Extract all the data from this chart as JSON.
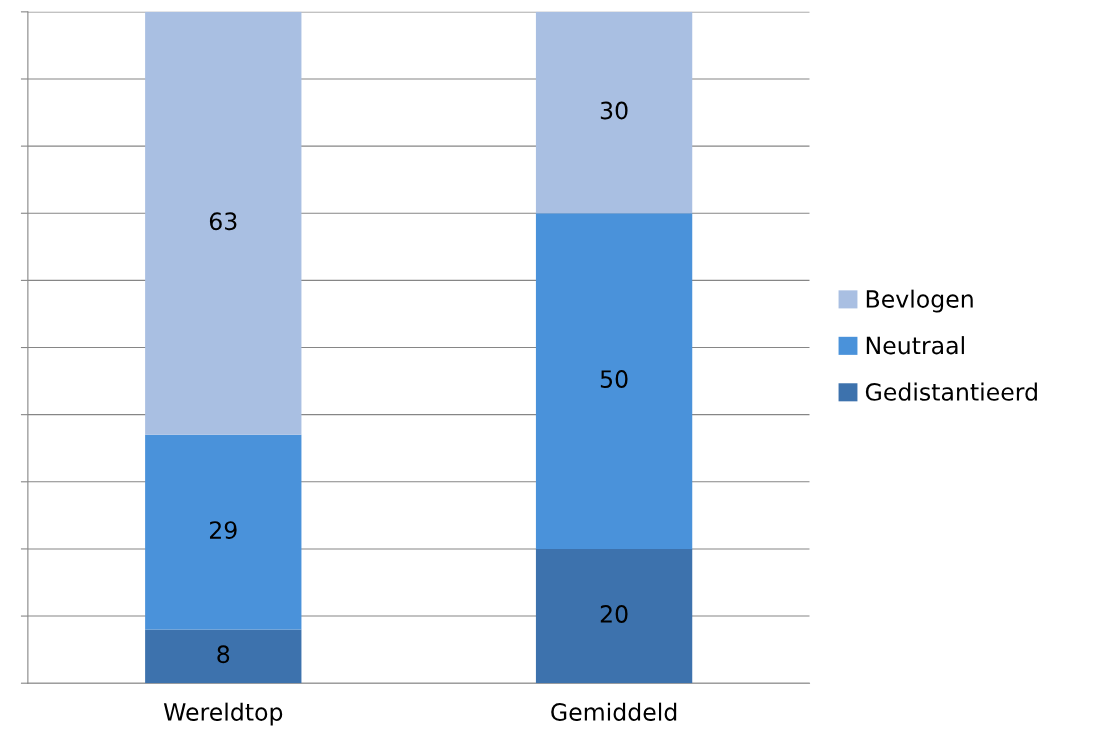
{
  "chart_data": {
    "type": "bar",
    "stacked": true,
    "categories": [
      "Wereldtop",
      "Gemiddeld"
    ],
    "series": [
      {
        "name": "Gedistantieerd",
        "color": "#3d72ad",
        "values": [
          8,
          20
        ]
      },
      {
        "name": "Neutraal",
        "color": "#4a92da",
        "values": [
          29,
          50
        ]
      },
      {
        "name": "Bevlogen",
        "color": "#a9bfe2",
        "values": [
          63,
          30
        ]
      }
    ],
    "ylim": [
      0,
      100
    ],
    "yticks": [
      {
        "value": 0,
        "label": null
      },
      {
        "value": 10,
        "label": null
      },
      {
        "value": 20,
        "label": null
      },
      {
        "value": 30,
        "label": null
      },
      {
        "value": 40,
        "label": null
      },
      {
        "value": 50,
        "label": null
      },
      {
        "value": 60,
        "label": null
      },
      {
        "value": 70,
        "label": null
      },
      {
        "value": 80,
        "label": null
      },
      {
        "value": 90,
        "label": null
      },
      {
        "value": 100,
        "label": null
      }
    ],
    "tick_labels": "x",
    "grid": "y",
    "legend": "right",
    "data_labels": true
  }
}
